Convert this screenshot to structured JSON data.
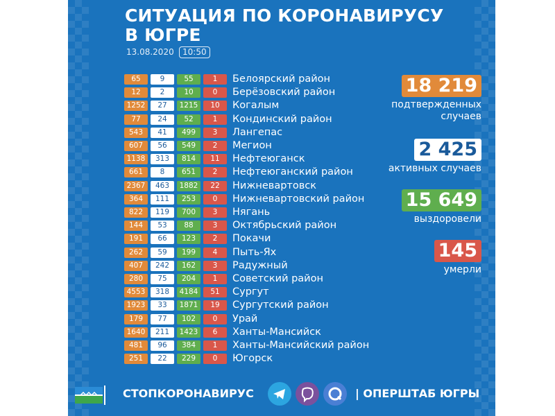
{
  "header": {
    "title_line1": "СИТУАЦИЯ ПО КОРОНАВИРУСУ",
    "title_line2": "В ЮГРЕ",
    "date": "13.08.2020",
    "time": "10:50"
  },
  "colors": {
    "background": "#1a73bd",
    "confirmed": "#e18a3a",
    "active": "#ffffff",
    "recovered": "#5fae4e",
    "deaths": "#d9574a"
  },
  "rows": [
    {
      "confirmed": "65",
      "active": "9",
      "recovered": "55",
      "deaths": "1",
      "name": "Белоярский район"
    },
    {
      "confirmed": "12",
      "active": "2",
      "recovered": "10",
      "deaths": "0",
      "name": "Берёзовский район"
    },
    {
      "confirmed": "1252",
      "active": "27",
      "recovered": "1215",
      "deaths": "10",
      "name": "Когалым"
    },
    {
      "confirmed": "77",
      "active": "24",
      "recovered": "52",
      "deaths": "1",
      "name": "Кондинский район"
    },
    {
      "confirmed": "543",
      "active": "41",
      "recovered": "499",
      "deaths": "3",
      "name": "Лангепас"
    },
    {
      "confirmed": "607",
      "active": "56",
      "recovered": "549",
      "deaths": "2",
      "name": "Мегион"
    },
    {
      "confirmed": "1138",
      "active": "313",
      "recovered": "814",
      "deaths": "11",
      "name": "Нефтеюганск"
    },
    {
      "confirmed": "661",
      "active": "8",
      "recovered": "651",
      "deaths": "2",
      "name": "Нефтеюганский район"
    },
    {
      "confirmed": "2367",
      "active": "463",
      "recovered": "1882",
      "deaths": "22",
      "name": "Нижневартовск"
    },
    {
      "confirmed": "364",
      "active": "111",
      "recovered": "253",
      "deaths": "0",
      "name": "Нижневартовский район"
    },
    {
      "confirmed": "822",
      "active": "119",
      "recovered": "700",
      "deaths": "3",
      "name": "Нягань"
    },
    {
      "confirmed": "144",
      "active": "53",
      "recovered": "88",
      "deaths": "3",
      "name": "Октябрьский район"
    },
    {
      "confirmed": "191",
      "active": "66",
      "recovered": "123",
      "deaths": "2",
      "name": "Покачи"
    },
    {
      "confirmed": "262",
      "active": "59",
      "recovered": "199",
      "deaths": "4",
      "name": "Пыть-Ях"
    },
    {
      "confirmed": "407",
      "active": "242",
      "recovered": "162",
      "deaths": "3",
      "name": "Радужный"
    },
    {
      "confirmed": "280",
      "active": "75",
      "recovered": "204",
      "deaths": "1",
      "name": "Советский район"
    },
    {
      "confirmed": "4553",
      "active": "318",
      "recovered": "4184",
      "deaths": "51",
      "name": "Сургут"
    },
    {
      "confirmed": "1923",
      "active": "33",
      "recovered": "1871",
      "deaths": "19",
      "name": "Сургутский район"
    },
    {
      "confirmed": "179",
      "active": "77",
      "recovered": "102",
      "deaths": "0",
      "name": "Урай"
    },
    {
      "confirmed": "1640",
      "active": "211",
      "recovered": "1423",
      "deaths": "6",
      "name": "Ханты-Мансийск"
    },
    {
      "confirmed": "481",
      "active": "96",
      "recovered": "384",
      "deaths": "1",
      "name": "Ханты-Мансийский район"
    },
    {
      "confirmed": "251",
      "active": "22",
      "recovered": "229",
      "deaths": "0",
      "name": "Югорск"
    }
  ],
  "stats": {
    "confirmed": {
      "value": "18 219",
      "label_line1": "подтвержденных",
      "label_line2": "случаев"
    },
    "active": {
      "value": "2 425",
      "label_line1": "активных случаев"
    },
    "recovered": {
      "value": "15 649",
      "label_line1": "выздоровели"
    },
    "deaths": {
      "value": "145",
      "label_line1": "умерли"
    }
  },
  "footer": {
    "hashtag": "СТОПКОРОНАВИРУС",
    "opershtab": "| ОПЕРШТАБ ЮГРЫ",
    "icons": [
      "telegram-icon",
      "viber-icon",
      "tamtam-icon"
    ]
  }
}
